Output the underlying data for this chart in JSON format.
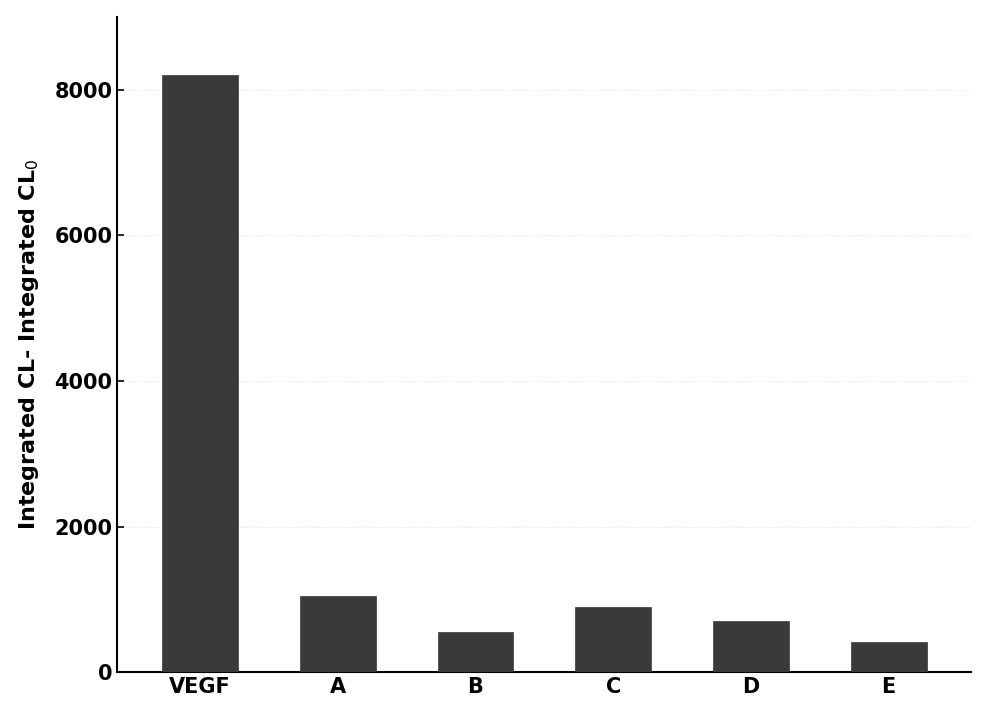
{
  "categories": [
    "VEGF",
    "A",
    "B",
    "C",
    "D",
    "E"
  ],
  "values": [
    8200,
    1050,
    550,
    900,
    700,
    420
  ],
  "bar_color": "#3a3a3a",
  "bar_edgecolor": "#3a3a3a",
  "ylim": [
    0,
    9000
  ],
  "yticks": [
    0,
    2000,
    4000,
    6000,
    8000
  ],
  "background_color": "#ffffff",
  "grid_color": "#d8ecd8",
  "tick_fontsize": 15,
  "label_fontsize": 16,
  "bar_width": 0.55,
  "figsize": [
    9.88,
    7.14
  ],
  "dpi": 100
}
